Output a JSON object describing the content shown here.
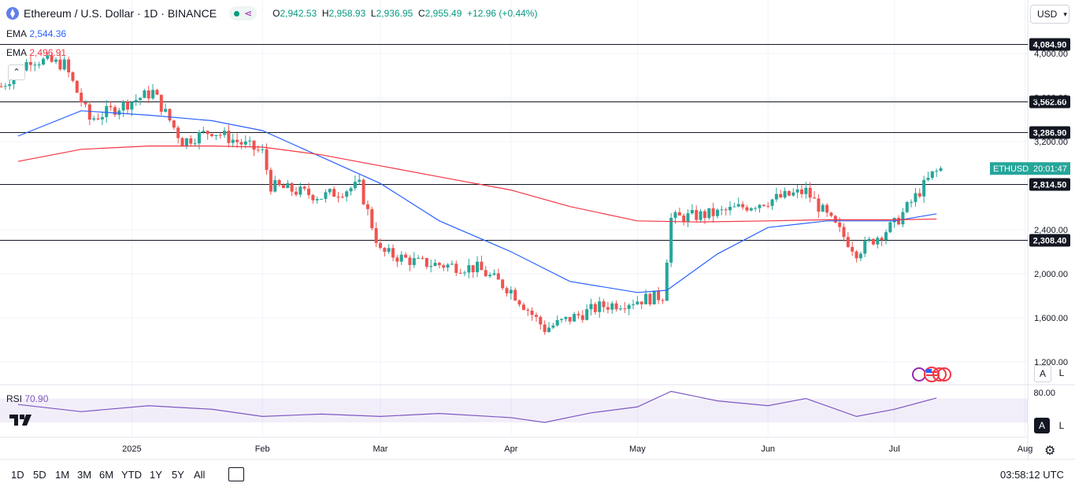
{
  "header": {
    "title": "Ethereum / U.S. Dollar · 1D · BINANCE",
    "open_label": "O",
    "open": "2,942.53",
    "high_label": "H",
    "high": "2,958.93",
    "low_label": "L",
    "low": "2,936.95",
    "close_label": "C",
    "close": "2,955.49",
    "change": "+12.96 (+0.44%)"
  },
  "indicators": {
    "ema1": {
      "label": "EMA",
      "value": "2,544.36",
      "color": "#2962ff"
    },
    "ema2": {
      "label": "EMA",
      "value": "2,496.91",
      "color": "#f23645"
    },
    "rsi": {
      "label": "RSI",
      "value": "70.90",
      "color": "#7e57c2"
    }
  },
  "currency": "USD",
  "price_tag": {
    "symbol": "ETHUSD",
    "time": "20:01:47",
    "color": "#26a69a"
  },
  "horizontal_levels": [
    "4,084.90",
    "3,562.60",
    "3,286.90",
    "2,814.50",
    "2,308.40"
  ],
  "rsi_axis": [
    "80.00"
  ],
  "scale_buttons": [
    "A",
    "L"
  ],
  "bottom_bar": {
    "ranges": [
      "1D",
      "5D",
      "1M",
      "3M",
      "6M",
      "YTD",
      "1Y",
      "5Y",
      "All"
    ],
    "clock": "03:58:12 UTC"
  },
  "chart_data": {
    "type": "line",
    "title": "Ethereum / U.S. Dollar · 1D · BINANCE",
    "y_ticks": [
      "4,000.00",
      "3,600.00",
      "3,200.00",
      "2,400.00",
      "2,000.00",
      "1,600.00",
      "1,200.00"
    ],
    "y_tick_values": [
      4000,
      3600,
      3200,
      2400,
      2000,
      1600,
      1200
    ],
    "x_ticks": [
      "2025",
      "Feb",
      "Mar",
      "Apr",
      "May",
      "Jun",
      "Jul",
      "Aug"
    ],
    "ylim": [
      1200,
      4150
    ],
    "series": [
      {
        "name": "EMA",
        "color": "#2962ff",
        "x": [
          "2024-12-05",
          "2024-12-20",
          "2025-01-05",
          "2025-01-20",
          "2025-02-01",
          "2025-02-15",
          "2025-03-01",
          "2025-03-15",
          "2025-04-01",
          "2025-04-15",
          "2025-05-01",
          "2025-05-08",
          "2025-05-20",
          "2025-06-01",
          "2025-06-15",
          "2025-07-01",
          "2025-07-11"
        ],
        "y": [
          3250,
          3480,
          3440,
          3390,
          3300,
          3060,
          2820,
          2480,
          2200,
          1930,
          1830,
          1850,
          2180,
          2420,
          2480,
          2480,
          2544
        ]
      },
      {
        "name": "EMA",
        "color": "#f23645",
        "x": [
          "2024-12-05",
          "2024-12-20",
          "2025-01-05",
          "2025-01-20",
          "2025-02-01",
          "2025-02-15",
          "2025-03-01",
          "2025-03-15",
          "2025-04-01",
          "2025-04-15",
          "2025-05-01",
          "2025-05-15",
          "2025-06-01",
          "2025-06-15",
          "2025-07-01",
          "2025-07-11"
        ],
        "y": [
          3020,
          3130,
          3160,
          3160,
          3150,
          3080,
          2980,
          2880,
          2760,
          2610,
          2480,
          2470,
          2480,
          2490,
          2490,
          2497
        ]
      },
      {
        "name": "RSI",
        "color": "#7e57c2",
        "x": [
          "2024-12-05",
          "2024-12-20",
          "2025-01-05",
          "2025-01-20",
          "2025-02-01",
          "2025-02-15",
          "2025-03-01",
          "2025-03-15",
          "2025-04-01",
          "2025-04-09",
          "2025-04-20",
          "2025-05-01",
          "2025-05-09",
          "2025-05-20",
          "2025-06-01",
          "2025-06-10",
          "2025-06-22",
          "2025-07-01",
          "2025-07-11"
        ],
        "y": [
          60,
          48,
          58,
          52,
          40,
          44,
          40,
          45,
          38,
          30,
          46,
          56,
          82,
          66,
          58,
          70,
          40,
          52,
          70.9
        ]
      }
    ]
  }
}
